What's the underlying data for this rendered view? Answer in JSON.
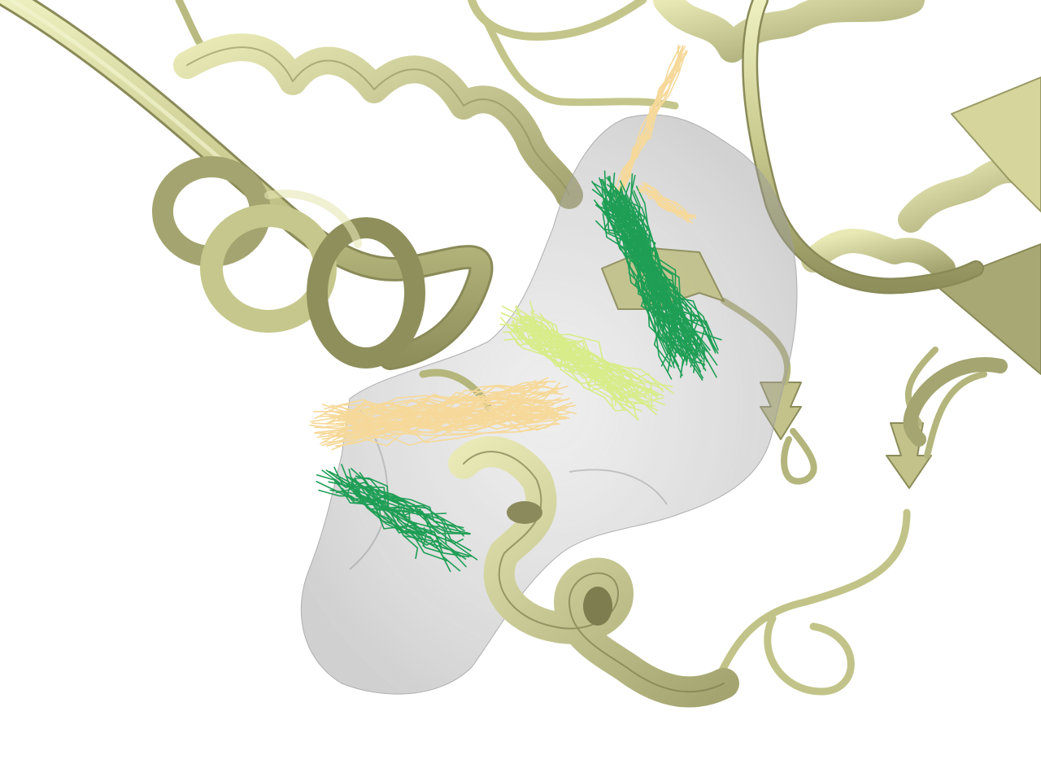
{
  "scene": {
    "background": "#ffffff",
    "colors": {
      "protein_light": "#e6e6b0",
      "protein_mid": "#c8c88c",
      "protein_dark": "#8c8c5a",
      "protein_outline": "#a8a870",
      "cavity_surface": "#b4b4b4",
      "ligand_dark_green": "#1f9e55",
      "ligand_light_green": "#d8ec8a",
      "ligand_peach": "#f6d99a"
    },
    "elements": [
      {
        "name": "protein-ribbon",
        "kind": "cartoon"
      },
      {
        "name": "binding-pocket-surface",
        "kind": "translucent-surface"
      },
      {
        "name": "ligand-pose-bundle",
        "kind": "stick-ensemble"
      }
    ]
  }
}
